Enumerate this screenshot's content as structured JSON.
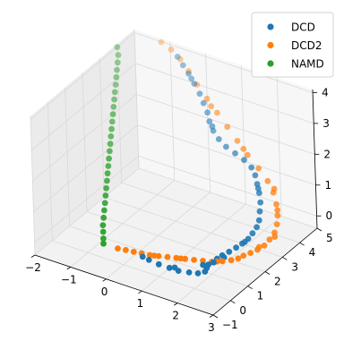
{
  "chart_data": {
    "type": "scatter",
    "projection": "3d",
    "title": "",
    "xlabel": "",
    "ylabel": "",
    "zlabel": "",
    "xlim": [
      -2,
      3
    ],
    "ylim": [
      -1,
      5
    ],
    "zlim": [
      -0.4,
      4.1
    ],
    "xticks": [
      "−2",
      "−1",
      "0",
      "1",
      "2",
      "3"
    ],
    "yticks": [
      "−1",
      "0",
      "1",
      "2",
      "3",
      "4",
      "5"
    ],
    "zticks": [
      "0",
      "1",
      "2",
      "3",
      "4"
    ],
    "grid": true,
    "legend_position": "upper right",
    "series": [
      {
        "name": "DCD",
        "color": "#1f77b4",
        "points": [
          [
            -0.6,
            4.6,
            3.95
          ],
          [
            -0.4,
            4.5,
            3.8
          ],
          [
            -0.2,
            4.4,
            3.65
          ],
          [
            0.0,
            4.3,
            3.45
          ],
          [
            0.2,
            4.2,
            3.25
          ],
          [
            0.35,
            4.1,
            3.05
          ],
          [
            0.5,
            4.0,
            2.85
          ],
          [
            0.6,
            3.9,
            2.65
          ],
          [
            0.75,
            3.8,
            2.45
          ],
          [
            0.95,
            3.7,
            2.3
          ],
          [
            1.2,
            3.6,
            2.2
          ],
          [
            1.5,
            3.5,
            2.15
          ],
          [
            1.8,
            3.4,
            2.1
          ],
          [
            2.05,
            3.3,
            2.0
          ],
          [
            2.2,
            3.2,
            1.85
          ],
          [
            2.3,
            3.1,
            1.65
          ],
          [
            2.4,
            3.0,
            1.45
          ],
          [
            2.5,
            2.85,
            1.25
          ],
          [
            2.55,
            2.7,
            1.05
          ],
          [
            2.6,
            2.55,
            0.85
          ],
          [
            2.6,
            2.4,
            0.7
          ],
          [
            2.55,
            2.25,
            0.55
          ],
          [
            2.5,
            2.1,
            0.42
          ],
          [
            2.4,
            1.95,
            0.3
          ],
          [
            2.3,
            1.8,
            0.2
          ],
          [
            2.2,
            1.6,
            0.12
          ],
          [
            2.1,
            1.4,
            0.06
          ],
          [
            2.05,
            1.2,
            0.02
          ],
          [
            2.05,
            1.0,
            0.0
          ],
          [
            2.0,
            0.8,
            0.0
          ],
          [
            2.05,
            0.6,
            0.0
          ],
          [
            2.1,
            0.4,
            0.0
          ],
          [
            2.0,
            0.2,
            0.0
          ],
          [
            1.8,
            0.1,
            0.0
          ],
          [
            1.55,
            0.0,
            0.0
          ],
          [
            1.3,
            0.0,
            0.0
          ],
          [
            1.0,
            0.0,
            0.0
          ],
          [
            0.7,
            0.05,
            0.0
          ],
          [
            0.5,
            0.1,
            0.0
          ],
          [
            1.9,
            0.7,
            0.0
          ],
          [
            2.2,
            1.3,
            0.08
          ],
          [
            2.45,
            2.0,
            0.35
          ],
          [
            2.35,
            3.05,
            1.55
          ],
          [
            0.7,
            3.85,
            2.55
          ],
          [
            -0.1,
            4.35,
            3.55
          ],
          [
            1.4,
            0.1,
            0.0
          ]
        ]
      },
      {
        "name": "DCD2",
        "color": "#ff7f0e",
        "points": [
          [
            -1.2,
            4.9,
            4.05
          ],
          [
            -0.9,
            4.85,
            3.95
          ],
          [
            -0.6,
            4.75,
            3.8
          ],
          [
            -0.3,
            4.6,
            3.6
          ],
          [
            0.0,
            4.45,
            3.35
          ],
          [
            0.35,
            4.3,
            3.1
          ],
          [
            0.7,
            4.15,
            2.85
          ],
          [
            1.05,
            4.0,
            2.6
          ],
          [
            1.4,
            3.85,
            2.35
          ],
          [
            1.75,
            3.7,
            2.1
          ],
          [
            2.1,
            3.6,
            1.85
          ],
          [
            2.4,
            3.5,
            1.6
          ],
          [
            2.6,
            3.4,
            1.35
          ],
          [
            2.75,
            3.25,
            1.1
          ],
          [
            2.85,
            3.1,
            0.85
          ],
          [
            2.9,
            2.95,
            0.65
          ],
          [
            2.9,
            2.8,
            0.45
          ],
          [
            2.85,
            2.6,
            0.3
          ],
          [
            2.8,
            2.4,
            0.18
          ],
          [
            2.7,
            2.2,
            0.1
          ],
          [
            2.6,
            2.0,
            0.05
          ],
          [
            2.5,
            1.8,
            0.02
          ],
          [
            2.45,
            1.6,
            0.0
          ],
          [
            2.35,
            1.4,
            0.0
          ],
          [
            2.2,
            1.2,
            0.0
          ],
          [
            2.0,
            1.0,
            0.0
          ],
          [
            1.8,
            0.9,
            0.0
          ],
          [
            1.6,
            0.8,
            0.0
          ],
          [
            1.4,
            0.7,
            0.0
          ],
          [
            1.2,
            0.6,
            0.0
          ],
          [
            1.0,
            0.5,
            0.0
          ],
          [
            0.8,
            0.4,
            0.0
          ],
          [
            0.6,
            0.3,
            0.0
          ],
          [
            0.4,
            0.25,
            0.0
          ],
          [
            0.2,
            0.2,
            0.0
          ],
          [
            0.0,
            0.15,
            0.0
          ],
          [
            -0.2,
            0.1,
            0.0
          ],
          [
            2.95,
            2.7,
            0.38
          ],
          [
            2.6,
            3.45,
            1.45
          ],
          [
            1.6,
            3.78,
            2.2
          ],
          [
            0.5,
            4.22,
            2.95
          ],
          [
            2.1,
            1.1,
            0.0
          ],
          [
            1.3,
            0.65,
            0.0
          ],
          [
            0.7,
            0.35,
            0.0
          ],
          [
            2.7,
            2.3,
            0.14
          ],
          [
            2.8,
            3.2,
            0.95
          ]
        ]
      },
      {
        "name": "NAMD",
        "color": "#2ca02c",
        "points": [
          [
            -2.0,
            4.0,
            4.0
          ],
          [
            -1.9,
            3.85,
            3.85
          ],
          [
            -1.85,
            3.7,
            3.7
          ],
          [
            -1.8,
            3.55,
            3.55
          ],
          [
            -1.75,
            3.4,
            3.4
          ],
          [
            -1.7,
            3.25,
            3.25
          ],
          [
            -1.65,
            3.1,
            3.1
          ],
          [
            -1.6,
            2.95,
            2.95
          ],
          [
            -1.55,
            2.8,
            2.8
          ],
          [
            -1.5,
            2.65,
            2.65
          ],
          [
            -1.45,
            2.5,
            2.5
          ],
          [
            -1.4,
            2.35,
            2.35
          ],
          [
            -1.35,
            2.2,
            2.2
          ],
          [
            -1.3,
            2.05,
            2.05
          ],
          [
            -1.25,
            1.9,
            1.9
          ],
          [
            -1.2,
            1.75,
            1.75
          ],
          [
            -1.15,
            1.6,
            1.6
          ],
          [
            -1.1,
            1.45,
            1.45
          ],
          [
            -1.05,
            1.3,
            1.3
          ],
          [
            -1.0,
            1.15,
            1.15
          ],
          [
            -0.95,
            1.0,
            1.0
          ],
          [
            -0.9,
            0.85,
            0.85
          ],
          [
            -0.85,
            0.7,
            0.7
          ],
          [
            -0.8,
            0.55,
            0.55
          ],
          [
            -0.75,
            0.4,
            0.4
          ],
          [
            -0.7,
            0.3,
            0.25
          ],
          [
            -0.65,
            0.2,
            0.1
          ],
          [
            -0.6,
            0.1,
            0.0
          ]
        ]
      }
    ]
  }
}
